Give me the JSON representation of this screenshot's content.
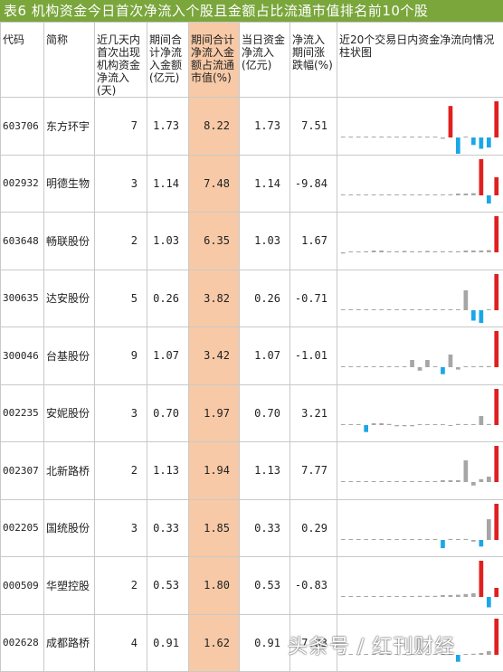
{
  "title": "表6 机构资金今日首次净流入个股且金额占比流通市值排名前10个股",
  "headers": [
    "代码",
    "简称",
    "近几天内首次出现机构资金净流入(天)",
    "期间合计净流入金额(亿元)",
    "期间合计净流入金额占流通市值(%)",
    "当日资金净流入(亿元)",
    "净流入期间涨跌幅(%)",
    "近20个交易日内资金净流向情况柱状图"
  ],
  "colors": {
    "title_bg": "#7aa63c",
    "highlight": "#f7c9a6",
    "positive_bar": "#e02020",
    "negative_bar": "#1aa7e8",
    "neutral_bar": "#a6a6a6"
  },
  "rows": [
    {
      "code": "603706",
      "name": "东方环宇",
      "days": "7",
      "total": "1.73",
      "ratio": "8.22",
      "today": "1.73",
      "change": "7.51",
      "bars": [
        0,
        0,
        0,
        0,
        0,
        0,
        0,
        0,
        0,
        0,
        0,
        0,
        0.02,
        -0.05,
        0.8,
        -0.9,
        0.02,
        -0.3,
        -0.45,
        -0.4,
        0.92
      ]
    },
    {
      "code": "002932",
      "name": "明德生物",
      "days": "3",
      "total": "1.14",
      "ratio": "7.48",
      "today": "1.14",
      "change": "-9.84",
      "bars": [
        0,
        0,
        0,
        0,
        0,
        0,
        0,
        0,
        0,
        0,
        0,
        0,
        0,
        0.02,
        0.03,
        0.05,
        0.05,
        0.06,
        1.0,
        -0.35,
        0.5
      ]
    },
    {
      "code": "603648",
      "name": "畅联股份",
      "days": "2",
      "total": "1.03",
      "ratio": "6.35",
      "today": "1.03",
      "change": "1.67",
      "bars": [
        -0.05,
        0.02,
        0.02,
        0.03,
        0.05,
        0.05,
        0.03,
        0.03,
        0.04,
        0.03,
        0.03,
        0.04,
        0.03,
        0.03,
        0.03,
        0.03,
        0.05,
        0.05,
        0.05,
        0.06,
        1.0
      ]
    },
    {
      "code": "300635",
      "name": "达安股份",
      "days": "5",
      "total": "0.26",
      "ratio": "3.82",
      "today": "0.26",
      "change": "-0.71",
      "bars": [
        0,
        0,
        0,
        0,
        0,
        0,
        0,
        0,
        0,
        0,
        0,
        0,
        0,
        0,
        0,
        0,
        0.55,
        -0.45,
        -0.55,
        0,
        1.0
      ]
    },
    {
      "code": "300046",
      "name": "台基股份",
      "days": "9",
      "total": "1.07",
      "ratio": "3.42",
      "today": "1.07",
      "change": "-1.01",
      "bars": [
        0,
        0,
        0,
        0,
        0,
        0,
        0,
        0.02,
        0.02,
        0.2,
        -0.15,
        0.2,
        0.02,
        -0.3,
        0.35,
        -0.1,
        0.02,
        0.02,
        0.03,
        0.03,
        1.0
      ]
    },
    {
      "code": "002235",
      "name": "安妮股份",
      "days": "3",
      "total": "0.70",
      "ratio": "1.97",
      "today": "0.70",
      "change": "3.21",
      "bars": [
        0,
        0,
        0,
        -0.3,
        0.05,
        0.05,
        0.03,
        -0.05,
        -0.05,
        -0.05,
        0.02,
        0.02,
        0.02,
        0.02,
        -0.03,
        0.03,
        0.02,
        0.02,
        0.25,
        0.03,
        1.0
      ]
    },
    {
      "code": "002307",
      "name": "北新路桥",
      "days": "2",
      "total": "1.13",
      "ratio": "1.94",
      "today": "1.13",
      "change": "7.77",
      "bars": [
        0,
        0,
        0,
        0,
        0,
        0,
        0,
        0,
        0,
        0.02,
        0.02,
        0.02,
        0.02,
        0.05,
        0.05,
        0.05,
        0.6,
        -0.15,
        0.08,
        0.15,
        1.0
      ]
    },
    {
      "code": "002205",
      "name": "国统股份",
      "days": "3",
      "total": "0.33",
      "ratio": "1.85",
      "today": "0.33",
      "change": "0.29",
      "bars": [
        0,
        0,
        0,
        0,
        0,
        0,
        0,
        0,
        0,
        0,
        0,
        0,
        0.02,
        -0.25,
        0.02,
        0.02,
        0.02,
        -0.05,
        -0.2,
        0.4,
        0.7
      ]
    },
    {
      "code": "000509",
      "name": "华塑控股",
      "days": "2",
      "total": "0.53",
      "ratio": "1.80",
      "today": "0.53",
      "change": "-0.83",
      "bars": [
        0,
        0,
        0,
        0,
        0,
        0,
        0,
        0,
        0,
        0.02,
        0.03,
        0.03,
        0.03,
        0.05,
        0.05,
        0.06,
        0.08,
        0.1,
        1.0,
        -0.45,
        0.25
      ]
    },
    {
      "code": "002628",
      "name": "成都路桥",
      "days": "4",
      "total": "0.91",
      "ratio": "1.62",
      "today": "0.91",
      "change": "7.83",
      "bars": [
        0,
        0,
        0,
        0,
        0,
        0,
        0,
        0,
        0,
        0,
        0,
        0,
        0,
        0,
        0.05,
        -0.3,
        0.02,
        0.03,
        0.05,
        0.1,
        1.0
      ]
    }
  ],
  "watermark": "头条号 / 红刊财经"
}
